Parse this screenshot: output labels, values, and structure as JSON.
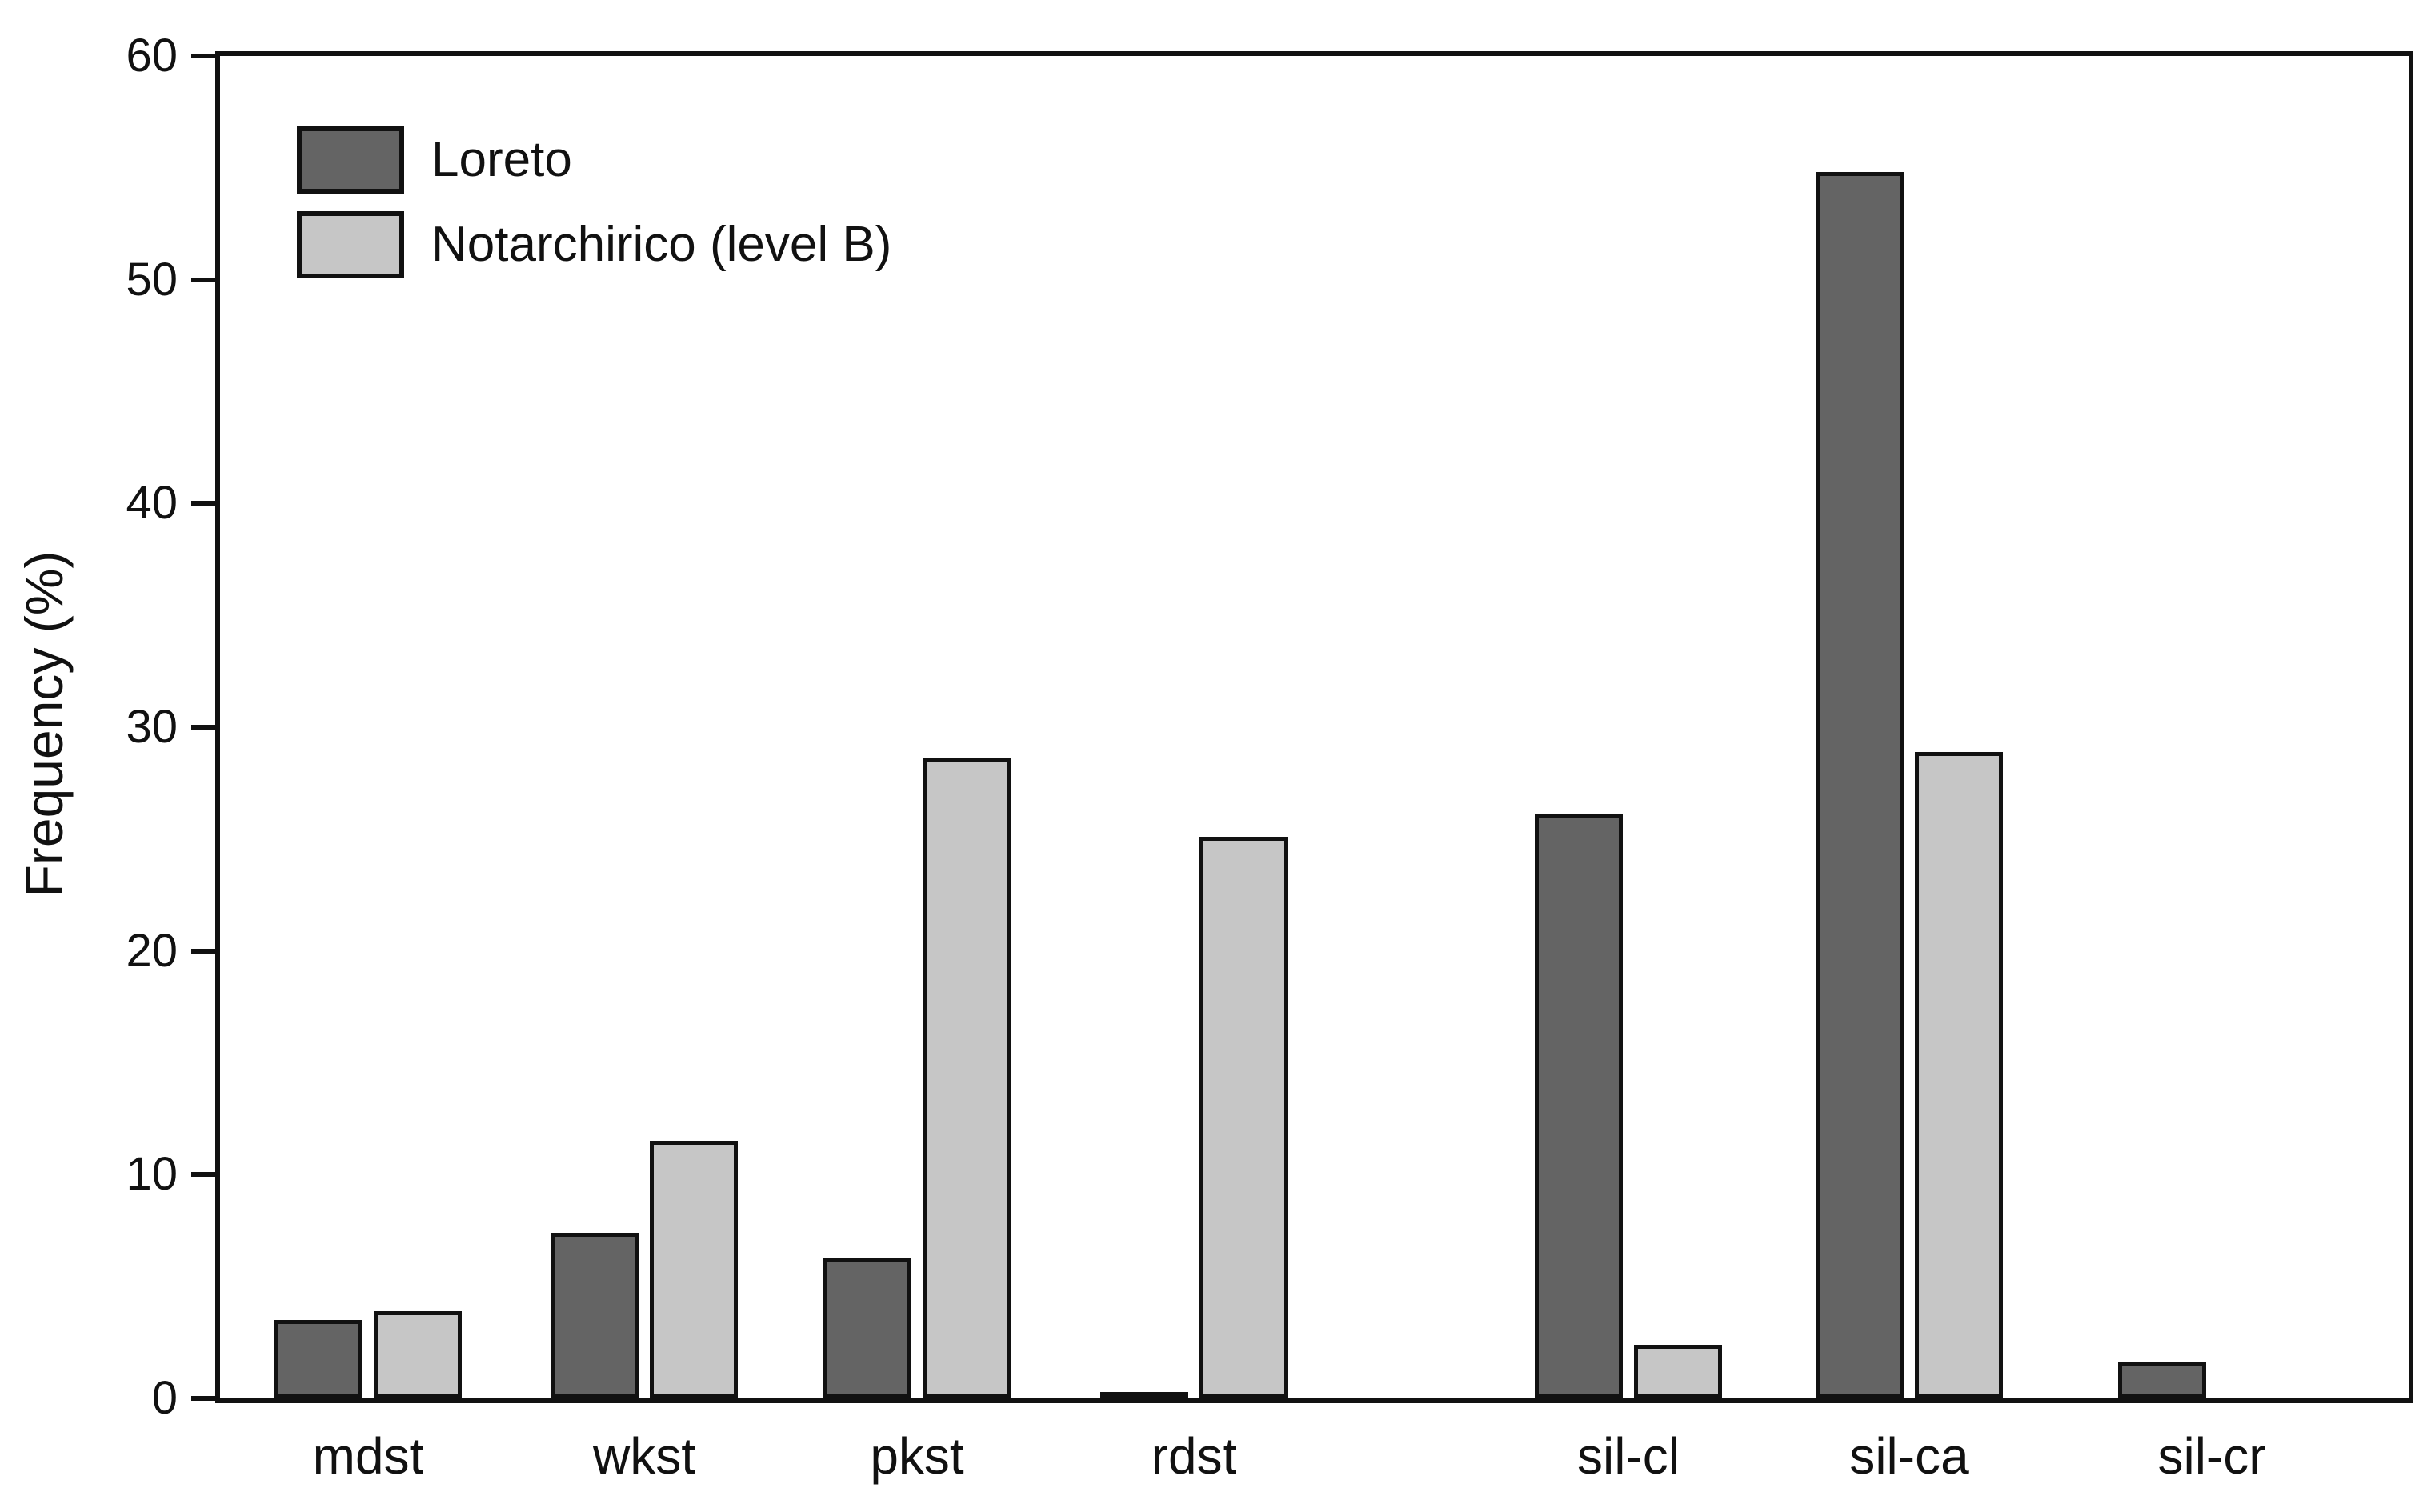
{
  "chart_data": {
    "type": "bar",
    "title": "",
    "xlabel": "",
    "ylabel": "Frequency (%)",
    "ylim": [
      0,
      60
    ],
    "yticks": [
      0,
      10,
      20,
      30,
      40,
      50,
      60
    ],
    "grid": false,
    "legend_position": "top-left",
    "background_color": "#ffffff",
    "bar_outline_color": "#111111",
    "categories": [
      "mdst",
      "wkst",
      "pkst",
      "rdst",
      "sil-cl",
      "sil-ca",
      "sil-cr"
    ],
    "series": [
      {
        "name": "Loreto",
        "color": "#646464",
        "values": [
          3.5,
          7.4,
          6.3,
          0.3,
          26.1,
          54.8,
          1.6
        ]
      },
      {
        "name": "Notarchirico (level B)",
        "color": "#c6c6c6",
        "values": [
          3.9,
          11.5,
          28.6,
          25.1,
          2.4,
          28.9,
          0
        ]
      }
    ]
  }
}
